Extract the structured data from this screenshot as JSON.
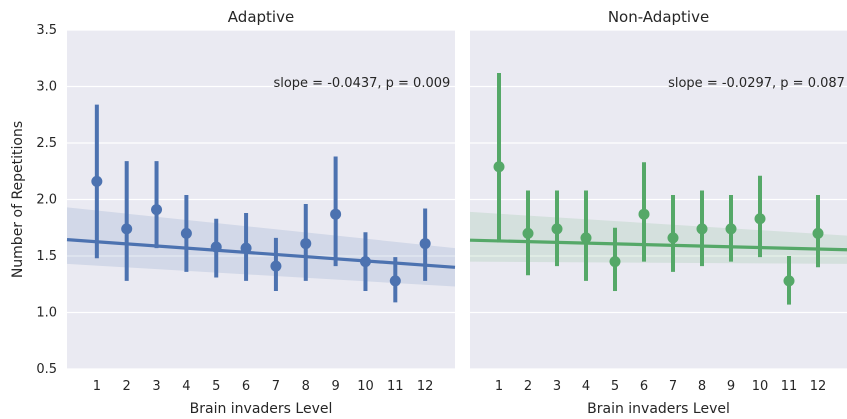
{
  "chart_data": [
    {
      "type": "scatter",
      "title": "Adaptive",
      "xlabel": "Brain invaders Level",
      "ylabel": "Number of Repetitions",
      "ylim": [
        0.5,
        3.5
      ],
      "yticks": [
        "0.5",
        "1.0",
        "1.5",
        "2.0",
        "2.5",
        "3.0",
        "3.5"
      ],
      "x": [
        "1",
        "2",
        "3",
        "4",
        "5",
        "6",
        "7",
        "8",
        "9",
        "10",
        "11",
        "12"
      ],
      "color": "#4c72b0",
      "series": [
        {
          "values": [
            2.16,
            1.74,
            1.91,
            1.7,
            1.58,
            1.57,
            1.41,
            1.61,
            1.87,
            1.45,
            1.28,
            1.61
          ],
          "ci_low": [
            1.48,
            1.28,
            1.57,
            1.36,
            1.31,
            1.28,
            1.19,
            1.28,
            1.41,
            1.19,
            1.09,
            1.28
          ],
          "ci_high": [
            2.84,
            2.34,
            2.34,
            2.04,
            1.83,
            1.88,
            1.66,
            1.96,
            2.38,
            1.71,
            1.49,
            1.92
          ]
        }
      ],
      "regression": {
        "y_at_start": 1.645,
        "y_at_end": 1.4,
        "band_low_start": 1.43,
        "band_high_start": 1.93,
        "band_low_end": 1.23,
        "band_high_end": 1.57
      },
      "annotation": "slope = -0.0437, p = 0.009"
    },
    {
      "type": "scatter",
      "title": "Non-Adaptive",
      "xlabel": "Brain invaders Level",
      "ylabel": "",
      "ylim": [
        0.5,
        3.5
      ],
      "x": [
        "1",
        "2",
        "3",
        "4",
        "5",
        "6",
        "7",
        "8",
        "9",
        "10",
        "11",
        "12"
      ],
      "color": "#55a868",
      "series": [
        {
          "values": [
            2.29,
            1.7,
            1.74,
            1.66,
            1.45,
            1.87,
            1.66,
            1.74,
            1.74,
            1.83,
            1.28,
            1.7
          ],
          "ci_low": [
            1.62,
            1.33,
            1.41,
            1.28,
            1.19,
            1.45,
            1.36,
            1.41,
            1.45,
            1.49,
            1.07,
            1.4
          ],
          "ci_high": [
            3.12,
            2.08,
            2.08,
            2.08,
            1.75,
            2.33,
            2.04,
            2.08,
            2.04,
            2.21,
            1.5,
            2.04
          ]
        }
      ],
      "regression": {
        "y_at_start": 1.64,
        "y_at_end": 1.555,
        "band_low_start": 1.45,
        "band_high_start": 1.89,
        "band_low_end": 1.43,
        "band_high_end": 1.68
      },
      "annotation": "slope = -0.0297, p = 0.087"
    }
  ]
}
